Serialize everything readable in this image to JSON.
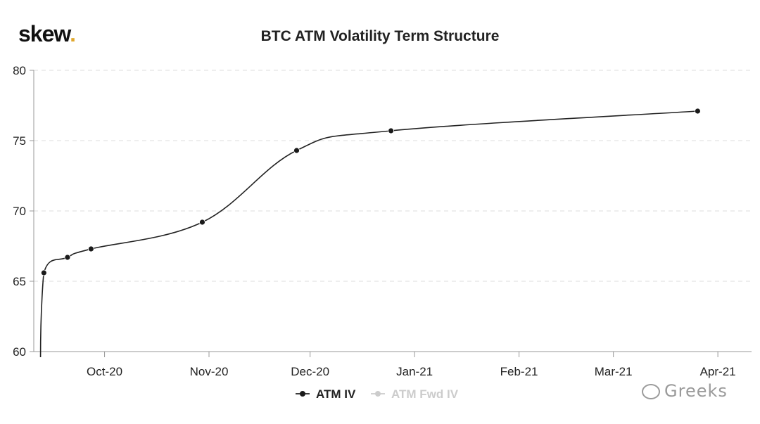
{
  "brand": {
    "logo_text": "skew",
    "logo_dot": ".",
    "accent_color": "#e0a82e"
  },
  "watermark": {
    "text": "Greeks"
  },
  "chart_data": {
    "type": "line",
    "title": "BTC ATM Volatility Term Structure",
    "xlabel": "",
    "ylabel": "",
    "ylim": [
      60,
      80
    ],
    "yticks": [
      60,
      65,
      70,
      75,
      80
    ],
    "xlim": [
      "2020-09-10",
      "2021-04-11"
    ],
    "xticks": [
      {
        "date": "2020-10-01",
        "label": "Oct-20"
      },
      {
        "date": "2020-11-01",
        "label": "Nov-20"
      },
      {
        "date": "2020-12-01",
        "label": "Dec-20"
      },
      {
        "date": "2021-01-01",
        "label": "Jan-21"
      },
      {
        "date": "2021-02-01",
        "label": "Feb-21"
      },
      {
        "date": "2021-03-01",
        "label": "Mar-21"
      },
      {
        "date": "2021-04-01",
        "label": "Apr-21"
      }
    ],
    "grid": {
      "horizontal": true,
      "vertical": false
    },
    "legend_placement": "bottom-center",
    "series": [
      {
        "name": "ATM IV",
        "color": "#222222",
        "marker_color": "#1a1a1a",
        "points": [
          {
            "x": "2020-09-12",
            "y": 59.6,
            "marker": false
          },
          {
            "x": "2020-09-13",
            "y": 65.6,
            "marker": true
          },
          {
            "x": "2020-09-20",
            "y": 66.7,
            "marker": true
          },
          {
            "x": "2020-09-27",
            "y": 67.3,
            "marker": true
          },
          {
            "x": "2020-10-30",
            "y": 69.2,
            "marker": true
          },
          {
            "x": "2020-11-27",
            "y": 74.3,
            "marker": true
          },
          {
            "x": "2020-12-25",
            "y": 75.7,
            "marker": true
          },
          {
            "x": "2021-03-26",
            "y": 77.1,
            "marker": true
          }
        ]
      },
      {
        "name": "ATM Fwd IV",
        "color": "#cccccc",
        "marker_color": "#cccccc",
        "points": []
      }
    ]
  }
}
